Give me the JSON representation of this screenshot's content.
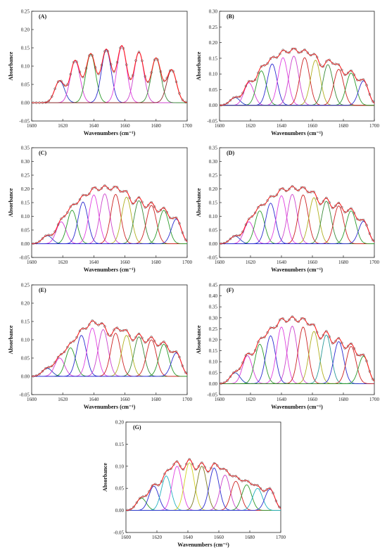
{
  "chart_data": [
    {
      "type": "line",
      "panel_label": "(A)",
      "xlabel": "Wavenumbers (cm⁻¹)",
      "ylabel": "Absorbance",
      "xlim": [
        1600,
        1700
      ],
      "ylim": [
        -0.05,
        0.25
      ],
      "xticks": [
        1600,
        1620,
        1640,
        1660,
        1680,
        1700
      ],
      "yticks": [
        -0.05,
        0.0,
        0.05,
        0.1,
        0.15,
        0.2,
        0.25
      ],
      "ytick_labels": [
        "-0.05",
        "0.00",
        "0.05",
        "0.10",
        "0.15",
        "0.20",
        "0.25"
      ],
      "series": [
        {
          "center": 1618,
          "height": 0.06,
          "color": "#1f3fbf"
        },
        {
          "center": 1628,
          "height": 0.115,
          "color": "#d63ad6"
        },
        {
          "center": 1638,
          "height": 0.133,
          "color": "#2a9a2a"
        },
        {
          "center": 1648,
          "height": 0.145,
          "color": "#2b2bd0"
        },
        {
          "center": 1658,
          "height": 0.155,
          "color": "#e040e0"
        },
        {
          "center": 1669,
          "height": 0.138,
          "color": "#cc44cc"
        },
        {
          "center": 1680,
          "height": 0.122,
          "color": "#3a8a3a"
        },
        {
          "center": 1690,
          "height": 0.09,
          "color": "#8a2a2a"
        }
      ],
      "fit_color": "#ff2020",
      "marker_color": "#555555"
    },
    {
      "type": "line",
      "panel_label": "(B)",
      "xlabel": "Wavenumbers (cm⁻¹)",
      "ylabel": "Absorbance",
      "xlim": [
        1600,
        1700
      ],
      "ylim": [
        -0.05,
        0.3
      ],
      "xticks": [
        1600,
        1620,
        1640,
        1660,
        1680,
        1700
      ],
      "yticks": [
        -0.05,
        0.0,
        0.05,
        0.1,
        0.15,
        0.2,
        0.25,
        0.3
      ],
      "ytick_labels": [
        "-0.05",
        "0.00",
        "0.05",
        "0.10",
        "0.15",
        "0.20",
        "0.25",
        "0.30"
      ],
      "series": [
        {
          "center": 1610,
          "height": 0.025,
          "color": "#1f3fbf"
        },
        {
          "center": 1619,
          "height": 0.072,
          "color": "#d63ad6"
        },
        {
          "center": 1627,
          "height": 0.11,
          "color": "#2a9a2a"
        },
        {
          "center": 1634,
          "height": 0.132,
          "color": "#2b2bd0"
        },
        {
          "center": 1641,
          "height": 0.152,
          "color": "#e040e0"
        },
        {
          "center": 1648,
          "height": 0.157,
          "color": "#cc44cc"
        },
        {
          "center": 1655,
          "height": 0.152,
          "color": "#cc2222"
        },
        {
          "center": 1662,
          "height": 0.144,
          "color": "#b0b020"
        },
        {
          "center": 1670,
          "height": 0.13,
          "color": "#3a8a3a"
        },
        {
          "center": 1677,
          "height": 0.115,
          "color": "#cc2222"
        },
        {
          "center": 1685,
          "height": 0.103,
          "color": "#2a9a2a"
        },
        {
          "center": 1693,
          "height": 0.078,
          "color": "#2b2bd0"
        }
      ],
      "fit_color": "#ff2020",
      "marker_color": "#555555"
    },
    {
      "type": "line",
      "panel_label": "(C)",
      "xlabel": "Wavenumbers (cm⁻¹)",
      "ylabel": "Absorbance",
      "xlim": [
        1600,
        1700
      ],
      "ylim": [
        -0.05,
        0.35
      ],
      "xticks": [
        1600,
        1620,
        1640,
        1660,
        1680,
        1700
      ],
      "yticks": [
        -0.05,
        0.0,
        0.05,
        0.1,
        0.15,
        0.2,
        0.25,
        0.3,
        0.35
      ],
      "ytick_labels": [
        "-0.05",
        "0.00",
        "0.05",
        "0.10",
        "0.15",
        "0.20",
        "0.25",
        "0.30",
        "0.35"
      ],
      "series": [
        {
          "center": 1610,
          "height": 0.03,
          "color": "#1f3fbf"
        },
        {
          "center": 1619,
          "height": 0.08,
          "color": "#d63ad6"
        },
        {
          "center": 1626,
          "height": 0.122,
          "color": "#2a9a2a"
        },
        {
          "center": 1633,
          "height": 0.152,
          "color": "#2b2bd0"
        },
        {
          "center": 1640,
          "height": 0.178,
          "color": "#e040e0"
        },
        {
          "center": 1647,
          "height": 0.182,
          "color": "#cc44cc"
        },
        {
          "center": 1654,
          "height": 0.18,
          "color": "#cc2222"
        },
        {
          "center": 1661,
          "height": 0.17,
          "color": "#b0b020"
        },
        {
          "center": 1669,
          "height": 0.157,
          "color": "#3a8a3a"
        },
        {
          "center": 1677,
          "height": 0.14,
          "color": "#cc2222"
        },
        {
          "center": 1685,
          "height": 0.122,
          "color": "#2a9a2a"
        },
        {
          "center": 1693,
          "height": 0.09,
          "color": "#2b2bd0"
        }
      ],
      "fit_color": "#ff2020",
      "marker_color": "#555555"
    },
    {
      "type": "line",
      "panel_label": "(D)",
      "xlabel": "Wavenumbers (cm⁻¹)",
      "ylabel": "Absorbance",
      "xlim": [
        1600,
        1700
      ],
      "ylim": [
        -0.05,
        0.35
      ],
      "xticks": [
        1600,
        1620,
        1640,
        1660,
        1680,
        1700
      ],
      "yticks": [
        -0.05,
        0.0,
        0.05,
        0.1,
        0.15,
        0.2,
        0.25,
        0.3,
        0.35
      ],
      "ytick_labels": [
        "-0.05",
        "0.00",
        "0.05",
        "0.10",
        "0.15",
        "0.20",
        "0.25",
        "0.30",
        "0.35"
      ],
      "series": [
        {
          "center": 1610,
          "height": 0.028,
          "color": "#1f3fbf"
        },
        {
          "center": 1619,
          "height": 0.08,
          "color": "#d63ad6"
        },
        {
          "center": 1626,
          "height": 0.12,
          "color": "#2a9a2a"
        },
        {
          "center": 1633,
          "height": 0.148,
          "color": "#2b2bd0"
        },
        {
          "center": 1640,
          "height": 0.175,
          "color": "#e040e0"
        },
        {
          "center": 1647,
          "height": 0.18,
          "color": "#cc44cc"
        },
        {
          "center": 1654,
          "height": 0.178,
          "color": "#cc2222"
        },
        {
          "center": 1661,
          "height": 0.168,
          "color": "#b0b020"
        },
        {
          "center": 1669,
          "height": 0.155,
          "color": "#3a8a3a"
        },
        {
          "center": 1677,
          "height": 0.138,
          "color": "#cc2222"
        },
        {
          "center": 1685,
          "height": 0.12,
          "color": "#2a9a2a"
        },
        {
          "center": 1693,
          "height": 0.082,
          "color": "#2b2bd0"
        }
      ],
      "fit_color": "#ff2020",
      "marker_color": "#555555"
    },
    {
      "type": "line",
      "panel_label": "(E)",
      "xlabel": "Wavenumbers (cm⁻¹)",
      "ylabel": "Absorbance",
      "xlim": [
        1600,
        1700
      ],
      "ylim": [
        -0.05,
        0.25
      ],
      "xticks": [
        1600,
        1620,
        1640,
        1660,
        1680,
        1700
      ],
      "yticks": [
        -0.05,
        0.0,
        0.05,
        0.1,
        0.15,
        0.2,
        0.25
      ],
      "ytick_labels": [
        "-0.05",
        "0.00",
        "0.05",
        "0.10",
        "0.15",
        "0.20",
        "0.25"
      ],
      "series": [
        {
          "center": 1610,
          "height": 0.022,
          "color": "#1f3fbf"
        },
        {
          "center": 1618,
          "height": 0.05,
          "color": "#d63ad6"
        },
        {
          "center": 1625,
          "height": 0.078,
          "color": "#2a9a2a"
        },
        {
          "center": 1632,
          "height": 0.112,
          "color": "#2b2bd0"
        },
        {
          "center": 1639,
          "height": 0.132,
          "color": "#e040e0"
        },
        {
          "center": 1646,
          "height": 0.128,
          "color": "#cc44cc"
        },
        {
          "center": 1654,
          "height": 0.118,
          "color": "#cc2222"
        },
        {
          "center": 1661,
          "height": 0.112,
          "color": "#b0b020"
        },
        {
          "center": 1669,
          "height": 0.108,
          "color": "#3a8a3a"
        },
        {
          "center": 1677,
          "height": 0.1,
          "color": "#cc2222"
        },
        {
          "center": 1685,
          "height": 0.088,
          "color": "#2a9a2a"
        },
        {
          "center": 1693,
          "height": 0.064,
          "color": "#2b2bd0"
        }
      ],
      "fit_color": "#ff2020",
      "marker_color": "#555555"
    },
    {
      "type": "line",
      "panel_label": "(F)",
      "xlabel": "Wavenumbers (cm⁻¹)",
      "ylabel": "Absorbance",
      "xlim": [
        1600,
        1700
      ],
      "ylim": [
        -0.05,
        0.45
      ],
      "xticks": [
        1600,
        1620,
        1640,
        1660,
        1680,
        1700
      ],
      "yticks": [
        -0.05,
        0.0,
        0.05,
        0.1,
        0.15,
        0.2,
        0.25,
        0.3,
        0.35,
        0.4,
        0.45
      ],
      "ytick_labels": [
        "-0.05",
        "0.00",
        "0.05",
        "0.10",
        "0.15",
        "0.20",
        "0.25",
        "0.30",
        "0.35",
        "0.40",
        "0.45"
      ],
      "series": [
        {
          "center": 1610,
          "height": 0.05,
          "color": "#1f3fbf"
        },
        {
          "center": 1618,
          "height": 0.128,
          "color": "#d63ad6"
        },
        {
          "center": 1626,
          "height": 0.18,
          "color": "#2a9a2a"
        },
        {
          "center": 1633,
          "height": 0.218,
          "color": "#2b2bd0"
        },
        {
          "center": 1640,
          "height": 0.258,
          "color": "#e040e0"
        },
        {
          "center": 1647,
          "height": 0.262,
          "color": "#cc44cc"
        },
        {
          "center": 1654,
          "height": 0.258,
          "color": "#cc2222"
        },
        {
          "center": 1661,
          "height": 0.238,
          "color": "#b0b020"
        },
        {
          "center": 1669,
          "height": 0.222,
          "color": "#2a9a9a"
        },
        {
          "center": 1677,
          "height": 0.192,
          "color": "#2b2bd0"
        },
        {
          "center": 1685,
          "height": 0.17,
          "color": "#cc2222"
        },
        {
          "center": 1693,
          "height": 0.125,
          "color": "#2a9a2a"
        }
      ],
      "fit_color": "#ff2020",
      "marker_color": "#555555"
    },
    {
      "type": "line",
      "panel_label": "(G)",
      "xlabel": "Wavenumbers (cm⁻¹)",
      "ylabel": "Absorbance",
      "xlim": [
        1600,
        1700
      ],
      "ylim": [
        -0.05,
        0.2
      ],
      "xticks": [
        1600,
        1620,
        1640,
        1660,
        1680,
        1700
      ],
      "yticks": [
        -0.05,
        0.0,
        0.05,
        0.1,
        0.15,
        0.2
      ],
      "ytick_labels": [
        "-0.05",
        "0.00",
        "0.05",
        "0.10",
        "0.15",
        "0.20"
      ],
      "series": [
        {
          "center": 1610,
          "height": 0.028,
          "color": "#2a9a2a"
        },
        {
          "center": 1618,
          "height": 0.055,
          "color": "#2b2bd0"
        },
        {
          "center": 1626,
          "height": 0.078,
          "color": "#20b0c0"
        },
        {
          "center": 1633,
          "height": 0.1,
          "color": "#e040e0"
        },
        {
          "center": 1641,
          "height": 0.108,
          "color": "#d0d020"
        },
        {
          "center": 1649,
          "height": 0.1,
          "color": "#7a7a20"
        },
        {
          "center": 1657,
          "height": 0.096,
          "color": "#2b2bd0"
        },
        {
          "center": 1664,
          "height": 0.08,
          "color": "#cc44cc"
        },
        {
          "center": 1671,
          "height": 0.066,
          "color": "#cc2222"
        },
        {
          "center": 1678,
          "height": 0.058,
          "color": "#2a9a2a"
        },
        {
          "center": 1685,
          "height": 0.05,
          "color": "#20b0c0"
        },
        {
          "center": 1693,
          "height": 0.048,
          "color": "#2b2bd0"
        }
      ],
      "fit_color": "#ff2020",
      "marker_color": "#555555"
    }
  ]
}
